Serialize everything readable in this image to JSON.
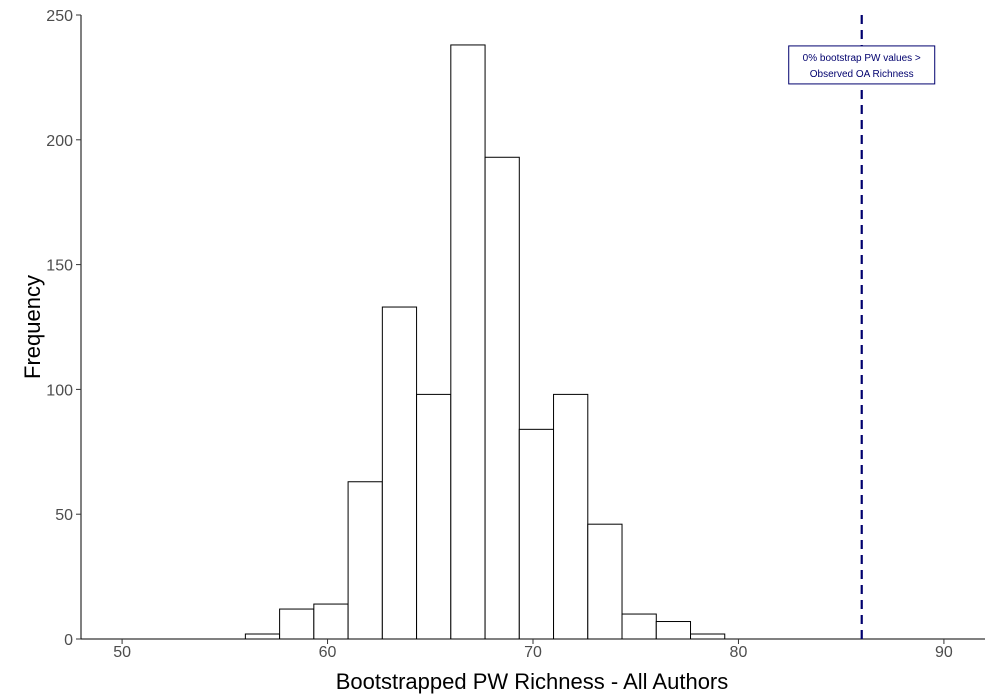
{
  "chart_data": {
    "type": "bar",
    "subtype": "histogram",
    "title": "",
    "xlabel": "Bootstrapped PW Richness - All Authors",
    "ylabel": "Frequency",
    "xlim": [
      48,
      92
    ],
    "ylim": [
      0,
      250
    ],
    "xticks": [
      50,
      60,
      70,
      80,
      90
    ],
    "yticks": [
      0,
      50,
      100,
      150,
      200,
      250
    ],
    "bin_width": 1.667,
    "bins": [
      {
        "x0": 51.0,
        "x1": 52.667,
        "count": 0
      },
      {
        "x0": 52.667,
        "x1": 54.333,
        "count": 0
      },
      {
        "x0": 54.333,
        "x1": 56.0,
        "count": 0
      },
      {
        "x0": 56.0,
        "x1": 57.667,
        "count": 2
      },
      {
        "x0": 57.667,
        "x1": 59.333,
        "count": 12
      },
      {
        "x0": 59.333,
        "x1": 61.0,
        "count": 14
      },
      {
        "x0": 61.0,
        "x1": 62.667,
        "count": 63
      },
      {
        "x0": 62.667,
        "x1": 64.333,
        "count": 133
      },
      {
        "x0": 64.333,
        "x1": 66.0,
        "count": 98
      },
      {
        "x0": 66.0,
        "x1": 67.667,
        "count": 238
      },
      {
        "x0": 67.667,
        "x1": 69.333,
        "count": 193
      },
      {
        "x0": 69.333,
        "x1": 71.0,
        "count": 84
      },
      {
        "x0": 71.0,
        "x1": 72.667,
        "count": 98
      },
      {
        "x0": 72.667,
        "x1": 74.333,
        "count": 46
      },
      {
        "x0": 74.333,
        "x1": 76.0,
        "count": 10
      },
      {
        "x0": 76.0,
        "x1": 77.667,
        "count": 7
      },
      {
        "x0": 77.667,
        "x1": 79.333,
        "count": 2
      },
      {
        "x0": 79.333,
        "x1": 81.0,
        "count": 0
      },
      {
        "x0": 81.0,
        "x1": 82.667,
        "count": 0
      },
      {
        "x0": 82.667,
        "x1": 84.333,
        "count": 0
      },
      {
        "x0": 84.333,
        "x1": 86.0,
        "count": 0
      },
      {
        "x0": 86.0,
        "x1": 87.667,
        "count": 0
      },
      {
        "x0": 87.667,
        "x1": 89.333,
        "count": 0
      }
    ],
    "bar_fill": "#ffffff",
    "bar_stroke": "#000000",
    "observed_line": {
      "x": 86.0,
      "color": "#00006e",
      "style": "dashed"
    },
    "annotation": {
      "lines": [
        "0% bootstrap PW values >",
        "Observed OA Richness"
      ],
      "x": 86.0,
      "y": 230,
      "color": "#00006e"
    },
    "grid": false,
    "legend": "none"
  }
}
